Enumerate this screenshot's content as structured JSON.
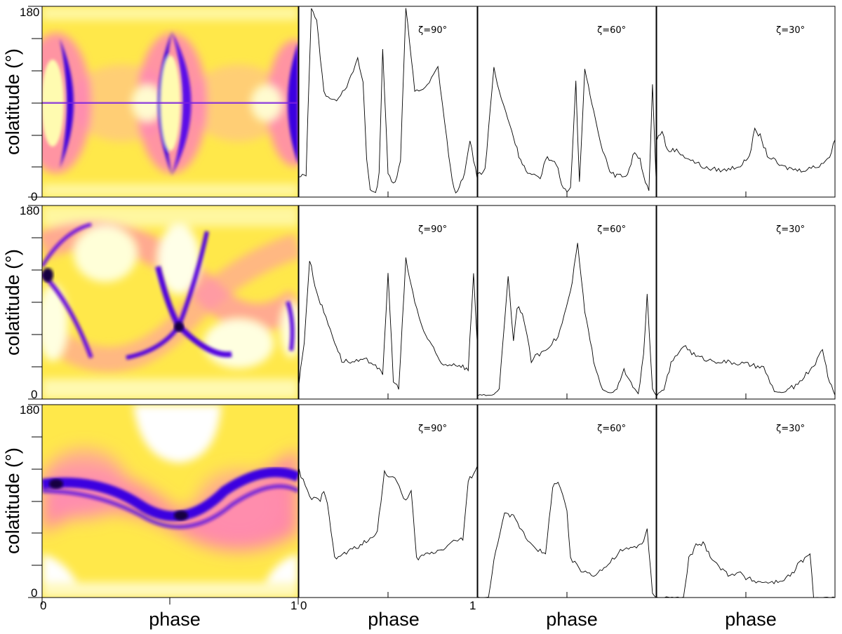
{
  "figure": {
    "y_axis_label": "colatitude (°)",
    "x_axis_label": "phase",
    "y_ticks": [
      "180",
      "0"
    ],
    "x_ticks": [
      "0",
      "1"
    ]
  },
  "colormap": [
    "#000000",
    "#1a0070",
    "#4b00e0",
    "#a030e0",
    "#ff40c0",
    "#ff9a7a",
    "#ffd040",
    "#ffff00",
    "#ffffd0",
    "#ffffff"
  ],
  "chart_data": [
    {
      "type": "heatmap",
      "row": 1,
      "title": "",
      "xlabel": "phase",
      "ylabel": "colatitude (°)",
      "xlim": [
        0,
        1
      ],
      "ylim": [
        0,
        180
      ],
      "grid": false,
      "features": [
        "dark caustic crescents near phase 0.05, 0.5 and 0.97",
        "bright lens cores centered at colatitude 90",
        "thin dark equatorial line at colatitude 90"
      ]
    },
    {
      "type": "line",
      "row": 1,
      "annotation": "ζ=90°",
      "xlim": [
        0,
        1
      ],
      "ylim": [
        0,
        1
      ],
      "x": [
        0.0,
        0.04,
        0.07,
        0.1,
        0.14,
        0.2,
        0.28,
        0.33,
        0.36,
        0.38,
        0.4,
        0.43,
        0.45,
        0.47,
        0.5,
        0.53,
        0.55,
        0.57,
        0.6,
        0.65,
        0.72,
        0.78,
        0.83,
        0.86,
        0.88,
        0.9,
        0.93,
        0.96,
        1.0
      ],
      "y": [
        0.1,
        0.12,
        1.0,
        0.92,
        0.55,
        0.5,
        0.6,
        0.72,
        0.6,
        0.2,
        0.04,
        0.02,
        0.12,
        0.78,
        0.12,
        0.08,
        0.1,
        0.2,
        1.0,
        0.55,
        0.58,
        0.68,
        0.3,
        0.08,
        0.02,
        0.05,
        0.12,
        0.3,
        0.1
      ]
    },
    {
      "type": "line",
      "row": 1,
      "annotation": "ζ=60°",
      "xlim": [
        0,
        1
      ],
      "ylim": [
        0,
        1
      ],
      "x": [
        0.0,
        0.04,
        0.09,
        0.12,
        0.18,
        0.23,
        0.28,
        0.35,
        0.38,
        0.42,
        0.45,
        0.47,
        0.5,
        0.52,
        0.55,
        0.57,
        0.6,
        0.65,
        0.7,
        0.75,
        0.8,
        0.84,
        0.88,
        0.91,
        0.94,
        0.96,
        0.98,
        1.0
      ],
      "y": [
        0.12,
        0.14,
        0.68,
        0.55,
        0.38,
        0.22,
        0.12,
        0.1,
        0.2,
        0.2,
        0.15,
        0.06,
        0.03,
        0.05,
        0.6,
        0.08,
        0.66,
        0.45,
        0.25,
        0.12,
        0.11,
        0.12,
        0.24,
        0.2,
        0.08,
        0.03,
        0.58,
        0.1
      ]
    },
    {
      "type": "line",
      "row": 1,
      "annotation": "ζ=30°",
      "xlim": [
        0,
        1
      ],
      "ylim": [
        0,
        1
      ],
      "x": [
        0.0,
        0.03,
        0.06,
        0.1,
        0.18,
        0.28,
        0.38,
        0.48,
        0.52,
        0.55,
        0.58,
        0.62,
        0.7,
        0.8,
        0.9,
        0.97,
        1.0
      ],
      "y": [
        0.3,
        0.35,
        0.24,
        0.25,
        0.2,
        0.15,
        0.14,
        0.17,
        0.22,
        0.35,
        0.32,
        0.22,
        0.16,
        0.14,
        0.16,
        0.21,
        0.3
      ]
    },
    {
      "type": "heatmap",
      "row": 2,
      "title": "",
      "xlabel": "phase",
      "ylabel": "colatitude (°)",
      "xlim": [
        0,
        1
      ],
      "ylim": [
        0,
        180
      ],
      "grid": false,
      "features": [
        "large bright lobes",
        "dark diagonal caustic crossing near phase 0.52, colatitude 70",
        "dark spot near phase 0.02, colatitude 120"
      ]
    },
    {
      "type": "line",
      "row": 2,
      "annotation": "ζ=90°",
      "xlim": [
        0,
        1
      ],
      "ylim": [
        0,
        1
      ],
      "x": [
        0.0,
        0.03,
        0.06,
        0.1,
        0.14,
        0.2,
        0.24,
        0.3,
        0.38,
        0.43,
        0.47,
        0.5,
        0.53,
        0.56,
        0.6,
        0.65,
        0.7,
        0.8,
        0.88,
        0.92,
        0.95,
        0.98,
        1.0
      ],
      "y": [
        0.08,
        0.3,
        0.72,
        0.55,
        0.45,
        0.3,
        0.2,
        0.19,
        0.2,
        0.18,
        0.12,
        0.65,
        0.1,
        0.05,
        0.72,
        0.5,
        0.35,
        0.18,
        0.18,
        0.17,
        0.15,
        0.65,
        0.3
      ]
    },
    {
      "type": "line",
      "row": 2,
      "annotation": "ζ=60°",
      "xlim": [
        0,
        1
      ],
      "ylim": [
        0,
        1
      ],
      "x": [
        0.0,
        0.08,
        0.12,
        0.17,
        0.2,
        0.22,
        0.25,
        0.3,
        0.38,
        0.45,
        0.52,
        0.56,
        0.6,
        0.65,
        0.7,
        0.75,
        0.78,
        0.82,
        0.87,
        0.9,
        0.93,
        0.95,
        0.98,
        1.0
      ],
      "y": [
        0.02,
        0.02,
        0.05,
        0.64,
        0.3,
        0.48,
        0.45,
        0.2,
        0.26,
        0.32,
        0.55,
        0.8,
        0.45,
        0.2,
        0.05,
        0.03,
        0.05,
        0.15,
        0.06,
        0.03,
        0.22,
        0.55,
        0.05,
        0.02
      ]
    },
    {
      "type": "line",
      "row": 2,
      "annotation": "ζ=30°",
      "xlim": [
        0,
        1
      ],
      "ylim": [
        0,
        1
      ],
      "x": [
        0.0,
        0.04,
        0.08,
        0.15,
        0.22,
        0.3,
        0.4,
        0.5,
        0.6,
        0.66,
        0.7,
        0.78,
        0.85,
        0.9,
        0.93,
        0.96,
        1.0
      ],
      "y": [
        0.02,
        0.05,
        0.18,
        0.28,
        0.22,
        0.2,
        0.19,
        0.18,
        0.16,
        0.04,
        0.03,
        0.07,
        0.14,
        0.2,
        0.26,
        0.12,
        0.02
      ]
    },
    {
      "type": "heatmap",
      "row": 3,
      "title": "",
      "xlabel": "phase",
      "ylabel": "colatitude (°)",
      "xlim": [
        0,
        1
      ],
      "ylim": [
        0,
        180
      ],
      "grid": false,
      "features": [
        "sinusoidal dark caustic band between colatitude 70 and 110",
        "bright regions top-center and bottom corners"
      ]
    },
    {
      "type": "line",
      "row": 3,
      "annotation": "ζ=90°",
      "xlim": [
        0,
        1
      ],
      "ylim": [
        0,
        1
      ],
      "x": [
        0.0,
        0.06,
        0.12,
        0.14,
        0.16,
        0.2,
        0.3,
        0.4,
        0.44,
        0.48,
        0.55,
        0.6,
        0.63,
        0.66,
        0.7,
        0.8,
        0.88,
        0.92,
        0.95,
        1.0
      ],
      "y": [
        0.66,
        0.52,
        0.5,
        0.56,
        0.5,
        0.2,
        0.25,
        0.3,
        0.35,
        0.65,
        0.6,
        0.5,
        0.55,
        0.2,
        0.22,
        0.25,
        0.3,
        0.3,
        0.6,
        0.68
      ]
    },
    {
      "type": "line",
      "row": 3,
      "annotation": "ζ=60°",
      "xlim": [
        0,
        1
      ],
      "ylim": [
        0,
        1
      ],
      "x": [
        0.0,
        0.06,
        0.1,
        0.15,
        0.2,
        0.28,
        0.35,
        0.38,
        0.42,
        0.45,
        0.5,
        0.52,
        0.58,
        0.65,
        0.72,
        0.8,
        0.88,
        0.92,
        0.95,
        0.98,
        1.0
      ],
      "y": [
        0.0,
        0.0,
        0.25,
        0.43,
        0.42,
        0.3,
        0.24,
        0.22,
        0.58,
        0.6,
        0.45,
        0.2,
        0.14,
        0.12,
        0.16,
        0.24,
        0.26,
        0.28,
        0.35,
        0.02,
        0.0
      ]
    },
    {
      "type": "line",
      "row": 3,
      "annotation": "ζ=30°",
      "xlim": [
        0,
        1
      ],
      "ylim": [
        0,
        1
      ],
      "x": [
        0.0,
        0.15,
        0.18,
        0.22,
        0.26,
        0.3,
        0.36,
        0.4,
        0.46,
        0.5,
        0.58,
        0.68,
        0.76,
        0.8,
        0.83,
        0.86,
        0.88,
        0.9,
        1.0
      ],
      "y": [
        0.0,
        0.0,
        0.2,
        0.27,
        0.28,
        0.22,
        0.15,
        0.12,
        0.13,
        0.1,
        0.08,
        0.08,
        0.12,
        0.18,
        0.2,
        0.22,
        0.0,
        0.0,
        0.0
      ]
    }
  ]
}
